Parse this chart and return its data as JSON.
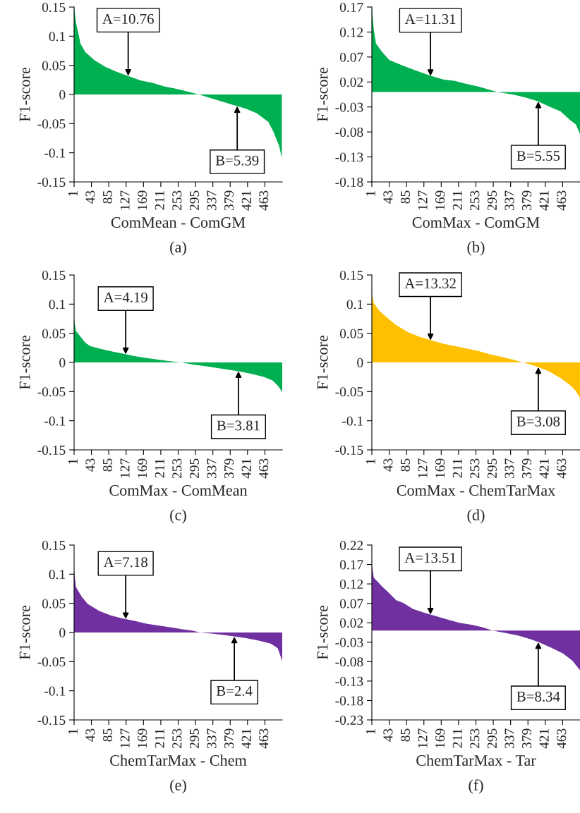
{
  "chart_data": [
    {
      "type": "area",
      "ylabel": "F1-score",
      "xlabel": "ComMean - ComGM",
      "xlim": [
        1,
        505
      ],
      "xticks": [
        1,
        43,
        85,
        127,
        169,
        211,
        253,
        295,
        337,
        379,
        421,
        463
      ],
      "ylim": [
        -0.15,
        0.15
      ],
      "yticks": [
        0.15,
        0.1,
        0.05,
        0,
        -0.05,
        -0.1,
        -0.15
      ],
      "grid": false,
      "legend": false,
      "series": [
        {
          "color": "#00b050",
          "x": [
            1,
            5.5,
            16.7,
            28,
            50,
            78,
            106,
            134,
            163,
            191,
            219,
            247,
            275,
            303,
            331,
            359,
            387,
            415,
            443,
            460,
            471,
            483,
            491,
            497,
            504
          ],
          "values": [
            0.15,
            0.124,
            0.087,
            0.073,
            0.059,
            0.047,
            0.0385,
            0.031,
            0.024,
            0.02,
            0.014,
            0.01,
            0.005,
            0,
            -0.006,
            -0.012,
            -0.018,
            -0.024,
            -0.032,
            -0.041,
            -0.047,
            -0.063,
            -0.077,
            -0.087,
            -0.109
          ]
        }
      ],
      "annotations": [
        {
          "text": "A=10.76",
          "x": 132,
          "y": 0.032
        },
        {
          "text": "B=5.39",
          "x": 396,
          "y": -0.02
        },
        "(a)"
      ]
    },
    {
      "type": "area",
      "ylabel": "F1-score",
      "xlabel": "ComMax - ComGM",
      "xlim": [
        1,
        505
      ],
      "xticks": [
        1,
        43,
        85,
        127,
        169,
        211,
        253,
        295,
        337,
        379,
        421,
        463
      ],
      "ylim": [
        -0.18,
        0.17
      ],
      "yticks": [
        0.17,
        0.12,
        0.07,
        0.02,
        -0.03,
        -0.08,
        -0.13,
        -0.18
      ],
      "grid": false,
      "legend": false,
      "series": [
        {
          "color": "#00b050",
          "x": [
            1,
            5.6,
            11,
            25,
            43,
            60,
            88,
            117,
            145,
            174,
            202,
            230,
            259,
            287,
            305,
            344,
            373,
            401,
            430,
            458,
            481,
            495,
            505
          ],
          "values": [
            0.169,
            0.126,
            0.097,
            0.081,
            0.064,
            0.058,
            0.049,
            0.04,
            0.032,
            0.025,
            0.022,
            0.016,
            0.011,
            0.004,
            0,
            -0.0055,
            -0.011,
            -0.018,
            -0.029,
            -0.039,
            -0.056,
            -0.065,
            -0.084
          ]
        }
      ],
      "annotations": [
        {
          "text": "A=11.31",
          "x": 143,
          "y": 0.032
        },
        {
          "text": "B=5.55",
          "x": 404,
          "y": -0.019
        },
        "(b)"
      ]
    },
    {
      "type": "area",
      "ylabel": "F1-score",
      "xlabel": "ComMax - ComMean",
      "xlim": [
        1,
        505
      ],
      "xticks": [
        1,
        43,
        85,
        127,
        169,
        211,
        253,
        295,
        337,
        379,
        421,
        463
      ],
      "ylim": [
        -0.15,
        0.15
      ],
      "yticks": [
        0.15,
        0.1,
        0.05,
        0,
        -0.05,
        -0.1,
        -0.15
      ],
      "grid": false,
      "legend": false,
      "series": [
        {
          "color": "#00b050",
          "x": [
            1,
            5.5,
            17,
            28,
            40,
            62,
            91,
            119,
            147,
            176,
            204,
            233,
            261,
            289,
            318,
            346,
            374,
            403,
            431,
            460,
            482,
            496,
            505
          ],
          "values": [
            0.074,
            0.054,
            0.044,
            0.034,
            0.028,
            0.024,
            0.019,
            0.015,
            0.011,
            0.0077,
            0.0049,
            0.002,
            0,
            -0.0036,
            -0.0065,
            -0.0093,
            -0.0125,
            -0.0158,
            -0.0198,
            -0.0247,
            -0.031,
            -0.041,
            -0.051
          ]
        }
      ],
      "annotations": [
        {
          "text": "A=4.19",
          "x": 126,
          "y": 0.014
        },
        {
          "text": "B=3.81",
          "x": 399,
          "y": -0.015
        },
        "(c)"
      ]
    },
    {
      "type": "area",
      "ylabel": "F1-score",
      "xlabel": "ComMax - ChemTarMax",
      "xlim": [
        1,
        505
      ],
      "xticks": [
        1,
        43,
        85,
        127,
        169,
        211,
        253,
        295,
        337,
        379,
        421,
        463
      ],
      "ylim": [
        -0.15,
        0.15
      ],
      "yticks": [
        0.15,
        0.1,
        0.05,
        0,
        -0.05,
        -0.1,
        -0.15
      ],
      "grid": false,
      "legend": false,
      "series": [
        {
          "color": "#ffc000",
          "x": [
            1,
            5.6,
            19.8,
            42.6,
            60,
            88,
            117,
            145,
            174,
            202,
            230,
            259,
            287,
            316,
            344,
            367,
            384,
            407,
            430,
            458,
            481,
            495,
            505
          ],
          "values": [
            0.12,
            0.102,
            0.088,
            0.074,
            0.064,
            0.052,
            0.044,
            0.038,
            0.032,
            0.028,
            0.024,
            0.0196,
            0.014,
            0.0095,
            0.0046,
            0,
            -0.0034,
            -0.0087,
            -0.0155,
            -0.027,
            -0.039,
            -0.049,
            -0.061
          ]
        }
      ],
      "annotations": [
        {
          "text": "A=13.32",
          "x": 143,
          "y": 0.038
        },
        {
          "text": "B=3.08",
          "x": 404,
          "y": -0.008
        },
        "(d)"
      ]
    },
    {
      "type": "area",
      "ylabel": "F1-score",
      "xlabel": "ChemTarMax - Chem",
      "xlim": [
        1,
        505
      ],
      "xticks": [
        1,
        43,
        85,
        127,
        169,
        211,
        253,
        295,
        337,
        379,
        421,
        463
      ],
      "ylim": [
        -0.15,
        0.15
      ],
      "yticks": [
        0.15,
        0.1,
        0.05,
        0,
        -0.05,
        -0.1,
        -0.15
      ],
      "grid": false,
      "legend": false,
      "series": [
        {
          "color": "#7030a0",
          "x": [
            1,
            5.5,
            19.7,
            34,
            62,
            91,
            119,
            147,
            176,
            204,
            233,
            261,
            289,
            306,
            334,
            363,
            391,
            420,
            448,
            477,
            494,
            505
          ],
          "values": [
            0.106,
            0.078,
            0.061,
            0.049,
            0.037,
            0.029,
            0.024,
            0.02,
            0.015,
            0.012,
            0.009,
            0.0058,
            0.003,
            0,
            -0.0018,
            -0.0042,
            -0.007,
            -0.0099,
            -0.0139,
            -0.019,
            -0.027,
            -0.049
          ]
        }
      ],
      "annotations": [
        {
          "text": "A=7.18",
          "x": 126,
          "y": 0.023
        },
        {
          "text": "B=2.4",
          "x": 389,
          "y": -0.007
        },
        "(e)"
      ]
    },
    {
      "type": "area",
      "ylabel": "F1-score",
      "xlabel": "ChemTarMax - Tar",
      "xlim": [
        1,
        505
      ],
      "xticks": [
        1,
        43,
        85,
        127,
        169,
        211,
        253,
        295,
        337,
        379,
        421,
        463
      ],
      "ylim": [
        -0.23,
        0.22
      ],
      "yticks": [
        0.22,
        0.17,
        0.12,
        0.07,
        0.02,
        -0.03,
        -0.08,
        -0.13,
        -0.18,
        -0.23
      ],
      "grid": false,
      "legend": false,
      "series": [
        {
          "color": "#7030a0",
          "x": [
            1,
            5.6,
            25.5,
            43,
            60,
            77,
            100,
            128,
            156,
            185,
            213,
            242,
            270,
            293,
            327,
            355,
            384,
            407,
            435,
            464,
            487,
            505
          ],
          "values": [
            0.17,
            0.136,
            0.114,
            0.096,
            0.078,
            0.071,
            0.056,
            0.046,
            0.037,
            0.028,
            0.02,
            0.015,
            0.008,
            0,
            -0.0066,
            -0.0128,
            -0.022,
            -0.031,
            -0.044,
            -0.059,
            -0.078,
            -0.102
          ]
        }
      ],
      "annotations": [
        {
          "text": "A=13.51",
          "x": 143,
          "y": 0.041
        },
        {
          "text": "B=8.34",
          "x": 404,
          "y": -0.03
        },
        "(f)"
      ]
    }
  ]
}
